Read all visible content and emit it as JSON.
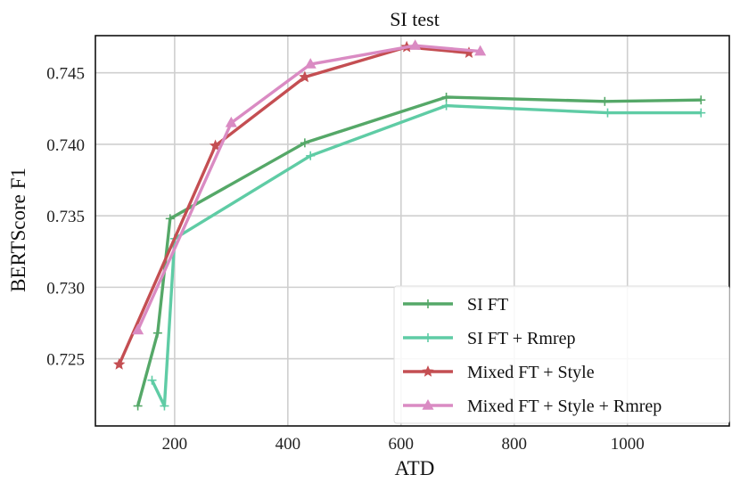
{
  "chart_data": {
    "type": "line",
    "title": "SI test",
    "xlabel": "ATD",
    "ylabel": "BERTScore F1",
    "xlim": [
      60,
      1180
    ],
    "ylim": [
      0.7203,
      0.7476
    ],
    "xticks": [
      200,
      400,
      600,
      800,
      1000
    ],
    "xtick_labels": [
      "200",
      "400",
      "600",
      "800",
      "1000"
    ],
    "yticks": [
      0.725,
      0.73,
      0.735,
      0.74,
      0.745
    ],
    "ytick_labels": [
      "0.725",
      "0.730",
      "0.735",
      "0.740",
      "0.745"
    ],
    "grid": true,
    "legend_position": "lower-right",
    "series": [
      {
        "name": "SI FT",
        "color": "#55a868",
        "marker": "plus",
        "x": [
          135,
          170,
          192,
          430,
          680,
          960,
          1130
        ],
        "y": [
          0.7217,
          0.7268,
          0.7348,
          0.7401,
          0.7433,
          0.743,
          0.7431
        ]
      },
      {
        "name": "SI FT + Rmrep",
        "color": "#5fcca5",
        "marker": "plus",
        "x": [
          160,
          182,
          200,
          440,
          680,
          965,
          1130
        ],
        "y": [
          0.7235,
          0.7217,
          0.7334,
          0.7392,
          0.7427,
          0.7422,
          0.7422
        ]
      },
      {
        "name": "Mixed FT + Style",
        "color": "#c44e52",
        "marker": "star",
        "x": [
          102,
          272,
          430,
          610,
          720
        ],
        "y": [
          0.7246,
          0.7399,
          0.7447,
          0.7468,
          0.7464
        ]
      },
      {
        "name": "Mixed FT + Style + Rmrep",
        "color": "#da8bc3",
        "marker": "triangle",
        "x": [
          135,
          300,
          440,
          625,
          740
        ],
        "y": [
          0.727,
          0.7415,
          0.7456,
          0.7469,
          0.7465
        ]
      }
    ]
  }
}
